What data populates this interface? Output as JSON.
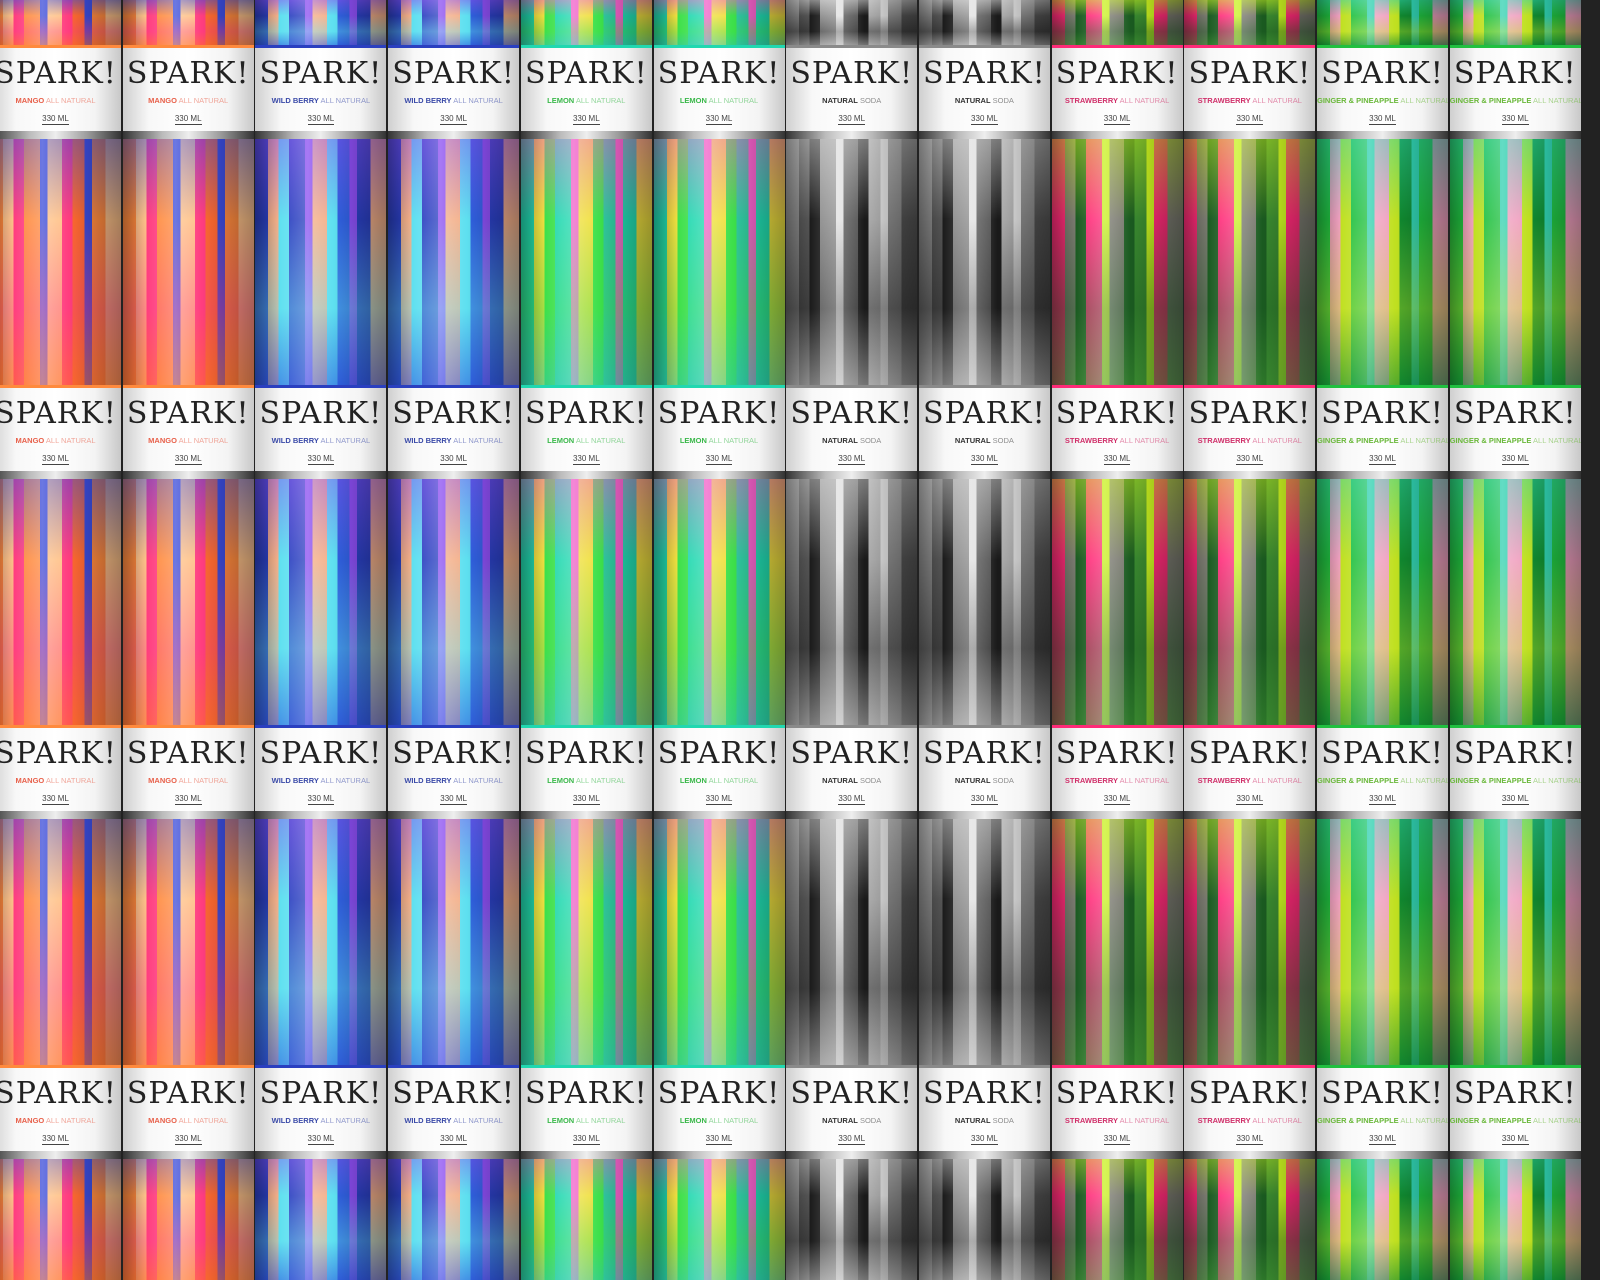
{
  "brand": "SPARK!",
  "volume": "330 ML",
  "flavors": [
    {
      "name": "MANGO",
      "tagline": "ALL NATURAL",
      "text_color": "#e8604a",
      "colors": [
        "#ff8a3d",
        "#ff3d7f",
        "#3a4bd8",
        "#ffc38a",
        "#ff6a30"
      ]
    },
    {
      "name": "WILD BERRY",
      "tagline": "ALL NATURAL",
      "text_color": "#3a4aa8",
      "colors": [
        "#2a3fc0",
        "#5ee0f0",
        "#8a4df0",
        "#f4b08a",
        "#3060e0"
      ]
    },
    {
      "name": "LEMON",
      "tagline": "ALL NATURAL",
      "text_color": "#3ab84a",
      "colors": [
        "#20d8b0",
        "#3de04a",
        "#f060c8",
        "#f0e040",
        "#30c8a0"
      ]
    },
    {
      "name": "NATURAL",
      "tagline": "SODA",
      "text_color": "#333333",
      "colors": [
        "#8a8a8a",
        "#1a1a1a",
        "#e0e0e0",
        "#555555",
        "#b0b0b0"
      ]
    },
    {
      "name": "STRAWBERRY",
      "tagline": "ALL NATURAL",
      "text_color": "#d0306a",
      "colors": [
        "#ff2a78",
        "#1a5a20",
        "#c8f020",
        "#7a7a70",
        "#3a8a30"
      ]
    },
    {
      "name": "GINGER & PINEAPPLE",
      "tagline": "ALL NATURAL",
      "text_color": "#6ab83a",
      "colors": [
        "#20c040",
        "#c0e020",
        "#30d0b0",
        "#f0a0c0",
        "#108a30"
      ]
    }
  ]
}
